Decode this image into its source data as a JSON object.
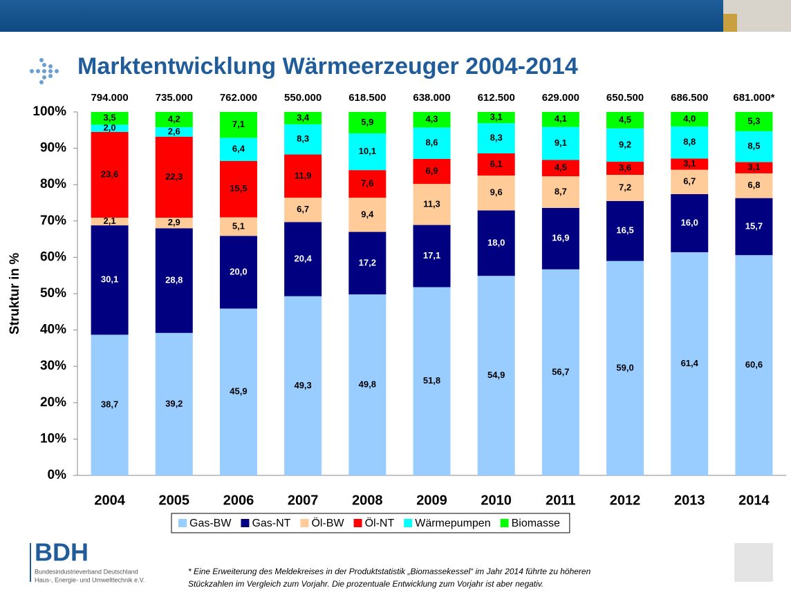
{
  "chart_data": {
    "type": "stacked_bar",
    "title": "Marktentwicklung Wärmeerzeuger 2004-2014",
    "y_label": "Struktur in %",
    "categories": [
      "2004",
      "2005",
      "2006",
      "2007",
      "2008",
      "2009",
      "2010",
      "2011",
      "2012",
      "2013",
      "2014"
    ],
    "top_labels": [
      "794.000",
      "735.000",
      "762.000",
      "550.000",
      "618.500",
      "638.000",
      "612.500",
      "629.000",
      "650.500",
      "686.500",
      "681.000*"
    ],
    "ylim": [
      0,
      100
    ],
    "yticks": [
      {
        "value": 0,
        "label": "0%"
      },
      {
        "value": 10,
        "label": "10%"
      },
      {
        "value": 20,
        "label": "20%"
      },
      {
        "value": 30,
        "label": "30%"
      },
      {
        "value": 40,
        "label": "40%"
      },
      {
        "value": 50,
        "label": "50%"
      },
      {
        "value": 60,
        "label": "60%"
      },
      {
        "value": 70,
        "label": "70%"
      },
      {
        "value": 80,
        "label": "80%"
      },
      {
        "value": 90,
        "label": "90%"
      },
      {
        "value": 100,
        "label": "100%"
      }
    ],
    "legend": "bottom",
    "series": [
      {
        "name": "Gas-BW",
        "color": "#99ccff",
        "label_color": "#000000",
        "values": [
          38.7,
          39.2,
          45.9,
          49.3,
          49.8,
          51.8,
          54.9,
          56.7,
          59.0,
          61.4,
          60.6
        ],
        "value_labels": [
          "38,7",
          "39,2",
          "45,9",
          "49,3",
          "49,8",
          "51,8",
          "54,9",
          "56,7",
          "59,0",
          "61,4",
          "60,6"
        ]
      },
      {
        "name": "Gas-NT",
        "color": "#000080",
        "label_color": "#ffffff",
        "values": [
          30.1,
          28.8,
          20.0,
          20.4,
          17.2,
          17.1,
          18.0,
          16.9,
          16.5,
          16.0,
          15.7
        ],
        "value_labels": [
          "30,1",
          "28,8",
          "20,0",
          "20,4",
          "17,2",
          "17,1",
          "18,0",
          "16,9",
          "16,5",
          "16,0",
          "15,7"
        ]
      },
      {
        "name": "Öl-BW",
        "color": "#ffcc99",
        "label_color": "#000000",
        "values": [
          2.1,
          2.9,
          5.1,
          6.7,
          9.4,
          11.3,
          9.6,
          8.7,
          7.2,
          6.7,
          6.8
        ],
        "value_labels": [
          "2,1",
          "2,9",
          "5,1",
          "6,7",
          "9,4",
          "11,3",
          "9,6",
          "8,7",
          "7,2",
          "6,7",
          "6,8"
        ]
      },
      {
        "name": "Öl-NT",
        "color": "#ff0000",
        "label_color": "#000000",
        "values": [
          23.6,
          22.3,
          15.5,
          11.9,
          7.6,
          6.9,
          6.1,
          4.5,
          3.6,
          3.1,
          3.1
        ],
        "value_labels": [
          "23,6",
          "22,3",
          "15,5",
          "11,9",
          "7,6",
          "6,9",
          "6,1",
          "4,5",
          "3,6",
          "3,1",
          "3,1"
        ]
      },
      {
        "name": "Wärmepumpen",
        "color": "#00ffff",
        "label_color": "#000000",
        "values": [
          2.0,
          2.6,
          6.4,
          8.3,
          10.1,
          8.6,
          8.3,
          9.1,
          9.2,
          8.8,
          8.5
        ],
        "value_labels": [
          "2,0",
          "2,6",
          "6,4",
          "8,3",
          "10,1",
          "8,6",
          "8,3",
          "9,1",
          "9,2",
          "8,8",
          "8,5"
        ]
      },
      {
        "name": "Biomasse",
        "color": "#00ff00",
        "label_color": "#000000",
        "values": [
          3.5,
          4.2,
          7.1,
          3.4,
          5.9,
          4.3,
          3.1,
          4.1,
          4.5,
          4.0,
          5.3
        ],
        "value_labels": [
          "3,5",
          "4,2",
          "7,1",
          "3,4",
          "5,9",
          "4,3",
          "3,1",
          "4,1",
          "4,5",
          "4,0",
          "5,3"
        ]
      }
    ]
  },
  "logo": {
    "name": "BDH",
    "line1": "Bundesindustrieverband Deutschland",
    "line2": "Haus-, Energie- und Umwelttechnik e.V."
  },
  "footnote": {
    "line1": "* Eine Erweiterung des Meldekreises in der Produktstatistik „Biomassekessel“ im Jahr 2014 führte zu höheren",
    "line2": "Stückzahlen im Vergleich zum Vorjahr. Die prozentuale Entwicklung zum Vorjahr ist aber negativ."
  }
}
